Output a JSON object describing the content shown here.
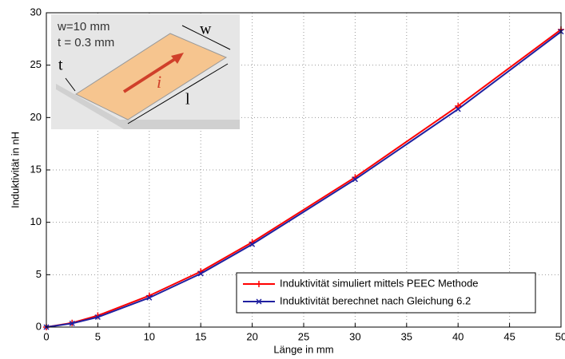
{
  "chart_data": {
    "type": "line",
    "xlabel": "Länge in mm",
    "ylabel": "Induktivität in nH",
    "x": [
      0,
      2.5,
      5,
      10,
      15,
      20,
      30,
      40,
      50
    ],
    "series": [
      {
        "name": "Induktivität simuliert mittels PEEC Methode",
        "color": "#ff0000",
        "marker": "+",
        "values": [
          0,
          0.4,
          1.1,
          3.0,
          5.3,
          8.1,
          14.3,
          21.1,
          28.4
        ]
      },
      {
        "name": "Induktivität berechnet nach Gleichung 6.2",
        "color": "#2020a0",
        "marker": "x",
        "values": [
          0,
          0.35,
          0.95,
          2.8,
          5.1,
          7.9,
          14.1,
          20.8,
          28.2
        ]
      }
    ],
    "xlim": [
      0,
      50
    ],
    "xticks": [
      0,
      5,
      10,
      15,
      20,
      25,
      30,
      35,
      40,
      45,
      50
    ],
    "ylim": [
      0,
      30
    ],
    "yticks": [
      0,
      5,
      10,
      15,
      20,
      25,
      30
    ],
    "grid": true,
    "legend": "lower right",
    "annotations": [
      "w=10 mm",
      "t = 0.3 mm",
      "t",
      "w",
      "l",
      "i"
    ]
  }
}
